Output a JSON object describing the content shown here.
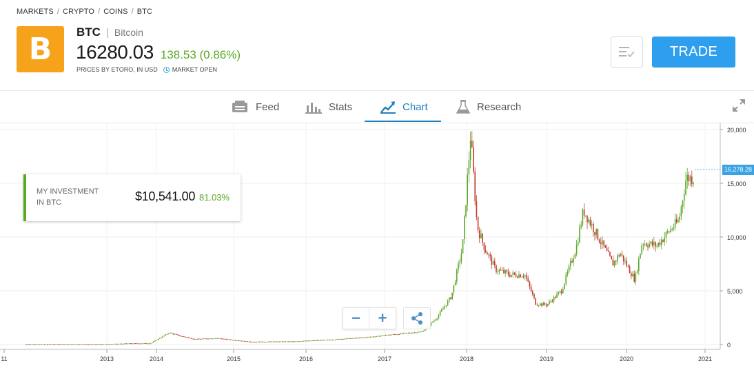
{
  "breadcrumb": [
    "MARKETS",
    "CRYPTO",
    "COINS",
    "BTC"
  ],
  "asset": {
    "logo_glyph": "B",
    "logo_color": "#f7a21b",
    "symbol": "BTC",
    "name": "Bitcoin",
    "price": "16280.03",
    "change": "138.53 (0.86%)",
    "change_color": "#5aa826",
    "price_source": "PRICES BY ETORO, IN USD",
    "market_status": "MARKET OPEN"
  },
  "actions": {
    "watchlist_icon": "watchlist-icon",
    "trade_label": "TRADE",
    "trade_color": "#2d9fee"
  },
  "tabs": [
    {
      "label": "Feed",
      "icon": "feed-icon"
    },
    {
      "label": "Stats",
      "icon": "stats-icon"
    },
    {
      "label": "Chart",
      "icon": "chart-icon",
      "active": true
    },
    {
      "label": "Research",
      "icon": "research-icon"
    }
  ],
  "investment": {
    "label_line1": "MY INVESTMENT",
    "label_line2": "IN BTC",
    "value": "$10,541.00",
    "percent": "81.03%"
  },
  "chart_controls": {
    "zoom_out": "−",
    "zoom_in": "+"
  },
  "chart_data": {
    "type": "line",
    "series": [
      {
        "x": [
          2012.0,
          2012.5,
          2013.0,
          2013.3,
          2013.6,
          2013.85,
          2014.0,
          2014.2,
          2014.5,
          2014.8,
          2015.0,
          2015.5,
          2016.0,
          2016.5,
          2017.0,
          2017.3,
          2017.5,
          2017.7,
          2017.85,
          2017.96,
          2018.05,
          2018.15,
          2018.3,
          2018.5,
          2018.7,
          2018.85,
          2019.0,
          2019.2,
          2019.4,
          2019.5,
          2019.7,
          2019.9,
          2020.0,
          2020.2,
          2020.3,
          2020.5,
          2020.7,
          2020.8,
          2020.9
        ],
        "y": [
          10,
          8,
          13,
          100,
          120,
          1100,
          800,
          500,
          600,
          350,
          250,
          280,
          430,
          650,
          1000,
          1200,
          2500,
          4500,
          9000,
          19500,
          11000,
          9000,
          7000,
          6500,
          6500,
          3800,
          3700,
          5000,
          9000,
          12500,
          10000,
          7500,
          8500,
          6000,
          9500,
          9200,
          10800,
          11500,
          15500
        ]
      }
    ],
    "y_ticks": [
      "20,000",
      "15,000",
      "10,000",
      "5,000",
      "0"
    ],
    "ylim": [
      0,
      20000
    ],
    "x_ticks": [
      "11",
      "2013",
      "2014",
      "2015",
      "2016",
      "2017",
      "2018",
      "2019",
      "2020",
      "2021"
    ],
    "last_price_label": "16,278.28",
    "last_value": 16278.28,
    "colors": {
      "up": "#5aa826",
      "down": "#c0392b",
      "tag": "#3aa3e3"
    },
    "grid": true
  }
}
